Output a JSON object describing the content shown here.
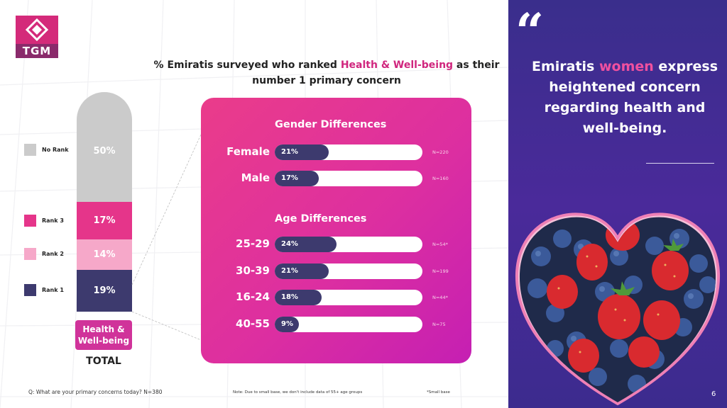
{
  "logo": {
    "text": "TGM"
  },
  "title": {
    "prefix": "% Emiratis surveyed who ranked ",
    "highlight": "Health & Well-being",
    "suffix": " as their",
    "line2": "number 1 primary concern"
  },
  "chart_data": [
    {
      "type": "bar",
      "subtype": "stacked",
      "category": "Health & Well-being",
      "category_group": "TOTAL",
      "series": [
        {
          "name": "Rank 1",
          "value": 19,
          "label": "19%"
        },
        {
          "name": "Rank 2",
          "value": 14,
          "label": "14%"
        },
        {
          "name": "Rank 3",
          "value": 17,
          "label": "17%"
        },
        {
          "name": "No Rank",
          "value": 50,
          "label": "50%"
        }
      ],
      "legend": [
        "No Rank",
        "Rank 3",
        "Rank 2",
        "Rank 1"
      ],
      "colors": {
        "No Rank": "#cbcbcb",
        "Rank 3": "#e5358a",
        "Rank 2": "#f6a8c9",
        "Rank 1": "#3d3a6e"
      }
    },
    {
      "type": "bar",
      "orientation": "horizontal",
      "title": "Gender Differences",
      "categories": [
        "Female",
        "Male"
      ],
      "values": [
        21,
        17
      ],
      "labels": [
        "21%",
        "17%"
      ],
      "bases": [
        "N=220",
        "N=160"
      ],
      "xlim": [
        0,
        100
      ]
    },
    {
      "type": "bar",
      "orientation": "horizontal",
      "title": "Age Differences",
      "categories": [
        "25-29",
        "30-39",
        "16-24",
        "40-55"
      ],
      "values": [
        24,
        21,
        18,
        9
      ],
      "labels": [
        "24%",
        "21%",
        "18%",
        "9%"
      ],
      "bases": [
        "N=54*",
        "N=199",
        "N=44*",
        "N=75"
      ],
      "xlim": [
        0,
        100
      ]
    }
  ],
  "footer": {
    "question": "Q: What are your primary concerns today? N=380",
    "note": "Note: Due to small base, we don't include data of 55+ age groups",
    "small_base": "*Small base"
  },
  "side_panel": {
    "quote_mark": "“",
    "quote_prefix": "Emiratis ",
    "quote_highlight": "women",
    "quote_rest": " express heightened concern regarding health and well-being.",
    "page_number": "6"
  },
  "colors": {
    "accent_pink": "#e5358a",
    "navy": "#3d3a6e",
    "panel_purple": "#3a2e8c"
  }
}
